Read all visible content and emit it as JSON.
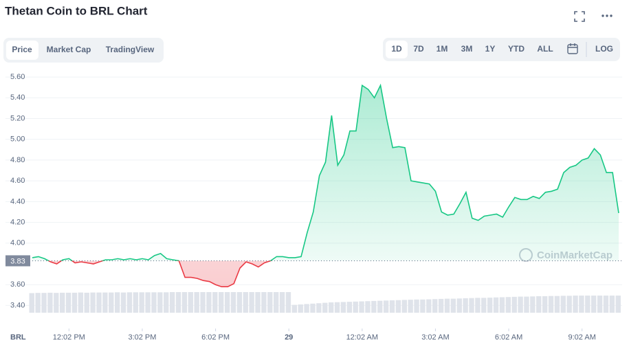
{
  "header": {
    "title": "Thetan Coin to BRL Chart"
  },
  "tabs": [
    "Price",
    "Market Cap",
    "TradingView"
  ],
  "ranges": [
    "1D",
    "7D",
    "1M",
    "3M",
    "1Y",
    "YTD",
    "ALL"
  ],
  "log_button": "LOG",
  "watermark": "CoinMarketCap",
  "chart_data": {
    "type": "line",
    "currency": "BRL",
    "reference_price": 3.83,
    "color_up": "#16c784",
    "color_down": "#ea3943",
    "values": [
      3.86,
      3.87,
      3.85,
      3.82,
      3.8,
      3.84,
      3.85,
      3.81,
      3.82,
      3.81,
      3.8,
      3.82,
      3.84,
      3.84,
      3.85,
      3.84,
      3.85,
      3.84,
      3.85,
      3.84,
      3.88,
      3.9,
      3.85,
      3.84,
      3.83,
      3.67,
      3.67,
      3.66,
      3.64,
      3.63,
      3.6,
      3.58,
      3.58,
      3.61,
      3.76,
      3.82,
      3.8,
      3.77,
      3.81,
      3.83,
      3.87,
      3.87,
      3.86,
      3.86,
      3.87,
      4.1,
      4.3,
      4.65,
      4.78,
      5.23,
      4.75,
      4.85,
      5.08,
      5.08,
      5.52,
      5.48,
      5.4,
      5.52,
      5.2,
      4.92,
      4.93,
      4.92,
      4.6,
      4.59,
      4.58,
      4.57,
      4.5,
      4.3,
      4.27,
      4.28,
      4.38,
      4.49,
      4.24,
      4.22,
      4.26,
      4.27,
      4.28,
      4.25,
      4.35,
      4.44,
      4.42,
      4.42,
      4.45,
      4.43,
      4.49,
      4.5,
      4.52,
      4.68,
      4.73,
      4.75,
      4.8,
      4.82,
      4.91,
      4.85,
      4.68,
      4.68,
      4.29
    ],
    "volume": [
      95,
      96,
      96,
      97,
      96,
      97,
      97,
      97,
      98,
      97,
      98,
      98,
      98,
      98,
      99,
      98,
      99,
      99,
      99,
      99,
      99,
      99,
      99,
      100,
      100,
      100,
      100,
      100,
      100,
      100,
      100,
      100,
      100,
      100,
      100,
      100,
      100,
      100,
      100,
      100,
      100,
      100,
      100,
      38,
      40,
      42,
      44,
      46,
      48,
      50,
      51,
      52,
      53,
      54,
      55,
      56,
      57,
      58,
      59,
      60,
      61,
      62,
      63,
      64,
      64,
      65,
      66,
      67,
      68,
      68,
      69,
      70,
      71,
      72,
      72,
      73,
      74,
      75,
      76,
      77,
      78,
      78,
      79,
      80,
      80,
      81,
      81,
      82,
      82,
      83,
      83,
      83,
      83,
      83,
      83,
      83,
      83
    ],
    "xlim": [
      0,
      96
    ],
    "xticks": [
      {
        "value": 6,
        "label": "12:02 PM"
      },
      {
        "value": 18,
        "label": "3:02 PM"
      },
      {
        "value": 30,
        "label": "6:02 PM"
      },
      {
        "value": 42,
        "label": "29"
      },
      {
        "value": 54,
        "label": "12:02 AM"
      },
      {
        "value": 66,
        "label": "3:02 AM"
      },
      {
        "value": 78,
        "label": "6:02 AM"
      },
      {
        "value": 90,
        "label": "9:02 AM"
      }
    ],
    "ylim": [
      3.33,
      5.68
    ],
    "yticks": [
      {
        "value": 3.4,
        "label": "3.40"
      },
      {
        "value": 3.6,
        "label": "3.60"
      },
      {
        "value": 4.0,
        "label": "4.00"
      },
      {
        "value": 4.2,
        "label": "4.20"
      },
      {
        "value": 4.4,
        "label": "4.40"
      },
      {
        "value": 4.6,
        "label": "4.60"
      },
      {
        "value": 4.8,
        "label": "4.80"
      },
      {
        "value": 5.0,
        "label": "5.00"
      },
      {
        "value": 5.2,
        "label": "5.20"
      },
      {
        "value": 5.4,
        "label": "5.40"
      },
      {
        "value": 5.6,
        "label": "5.60"
      }
    ],
    "grid": true
  }
}
